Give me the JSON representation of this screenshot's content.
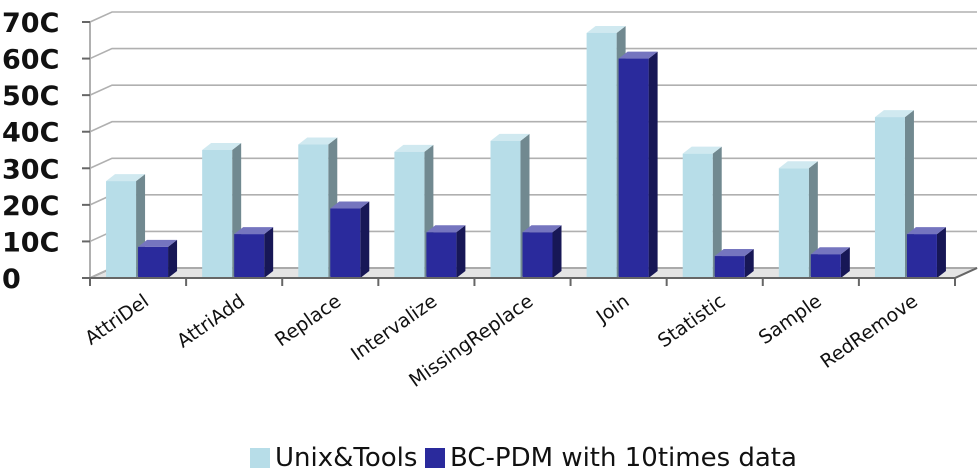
{
  "chart_data": {
    "type": "bar",
    "style": "3d-clustered-column",
    "categories": [
      "AttriDel",
      "AttriAdd",
      "Replace",
      "Intervalize",
      "MissingReplace",
      "Join",
      "Statistic",
      "Sample",
      "RedRemove"
    ],
    "series": [
      {
        "name": "Unix&Tools",
        "values": [
          265,
          350,
          365,
          345,
          375,
          670,
          340,
          300,
          440
        ],
        "color": "#b7dde8"
      },
      {
        "name": "BC-PDM with 10times data",
        "values": [
          85,
          120,
          190,
          125,
          125,
          600,
          60,
          65,
          120
        ],
        "color": "#2a2a9c"
      }
    ],
    "yticks": [
      "0",
      "10C",
      "20C",
      "30C",
      "40C",
      "50C",
      "60C",
      "70C"
    ],
    "ylim": [
      0,
      700
    ],
    "grid": true,
    "legend_position": "bottom",
    "colors": {
      "grid": "#b0b0b0",
      "wall": "#ffffff",
      "floor": "#9a9a9a"
    }
  }
}
